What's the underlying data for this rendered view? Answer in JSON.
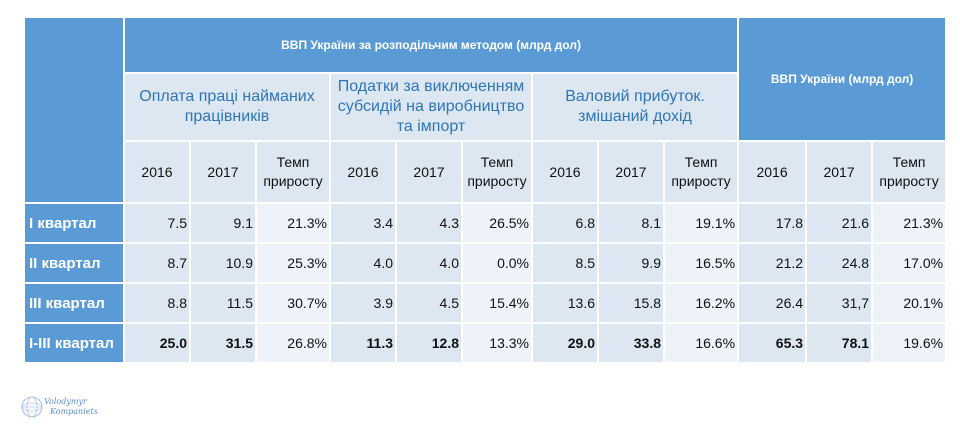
{
  "table": {
    "main_header": "ВВП України за розподільчим методом (млрд дол)",
    "total_header": "ВВП України (млрд дол)",
    "groups": [
      "Оплата праці найманих працівників",
      "Податки за виключенням субсидій на виробництво та імпорт",
      "Валовий прибуток. змішаний дохід"
    ],
    "col_labels": [
      "2016",
      "2017",
      "Темп приросту"
    ],
    "rows": [
      {
        "label": "I квартал",
        "values": [
          "7.5",
          "9.1",
          "21.3%",
          "3.4",
          "4.3",
          "26.5%",
          "6.8",
          "8.1",
          "19.1%",
          "17.8",
          "21.6",
          "21.3%"
        ]
      },
      {
        "label": "II квартал",
        "values": [
          "8.7",
          "10.9",
          "25.3%",
          "4.0",
          "4.0",
          "0.0%",
          "8.5",
          "9.9",
          "16.5%",
          "21.2",
          "24.8",
          "17.0%"
        ]
      },
      {
        "label": "III квартал",
        "values": [
          "8.8",
          "11.5",
          "30.7%",
          "3.9",
          "4.5",
          "15.4%",
          "13.6",
          "15.8",
          "16.2%",
          "26.4",
          "31,7",
          "20.1%"
        ]
      },
      {
        "label": "I-III квартал",
        "values": [
          "25.0",
          "31.5",
          "26.8%",
          "11.3",
          "12.8",
          "13.3%",
          "29.0",
          "33.8",
          "16.6%",
          "65.3",
          "78.1",
          "19.6%"
        ]
      }
    ]
  },
  "logo": {
    "line1": "Volodymyr",
    "line2": "Kompaniets"
  },
  "chart_data": {
    "type": "table",
    "title": "ВВП України за розподільчим методом (млрд дол)",
    "columns": [
      "Оплата праці найманих працівників 2016",
      "Оплата праці найманих працівників 2017",
      "Оплата праці найманих працівників Темп приросту",
      "Податки за виключенням субсидій на виробництво та імпорт 2016",
      "Податки за виключенням субсидій на виробництво та імпорт 2017",
      "Податки за виключенням субсидій на виробництво та імпорт Темп приросту",
      "Валовий прибуток. змішаний дохід 2016",
      "Валовий прибуток. змішаний дохід 2017",
      "Валовий прибуток. змішаний дохід Темп приросту",
      "ВВП України (млрд дол) 2016",
      "ВВП України (млрд дол) 2017",
      "ВВП України (млрд дол) Темп приросту"
    ],
    "rows": [
      {
        "label": "I квартал",
        "values": [
          7.5,
          9.1,
          21.3,
          3.4,
          4.3,
          26.5,
          6.8,
          8.1,
          19.1,
          17.8,
          21.6,
          21.3
        ]
      },
      {
        "label": "II квартал",
        "values": [
          8.7,
          10.9,
          25.3,
          4.0,
          4.0,
          0.0,
          8.5,
          9.9,
          16.5,
          21.2,
          24.8,
          17.0
        ]
      },
      {
        "label": "III квартал",
        "values": [
          8.8,
          11.5,
          30.7,
          3.9,
          4.5,
          15.4,
          13.6,
          15.8,
          16.2,
          26.4,
          31.7,
          20.1
        ]
      },
      {
        "label": "I-III квартал",
        "values": [
          25.0,
          31.5,
          26.8,
          11.3,
          12.8,
          13.3,
          29.0,
          33.8,
          16.6,
          65.3,
          78.1,
          19.6
        ]
      }
    ]
  }
}
